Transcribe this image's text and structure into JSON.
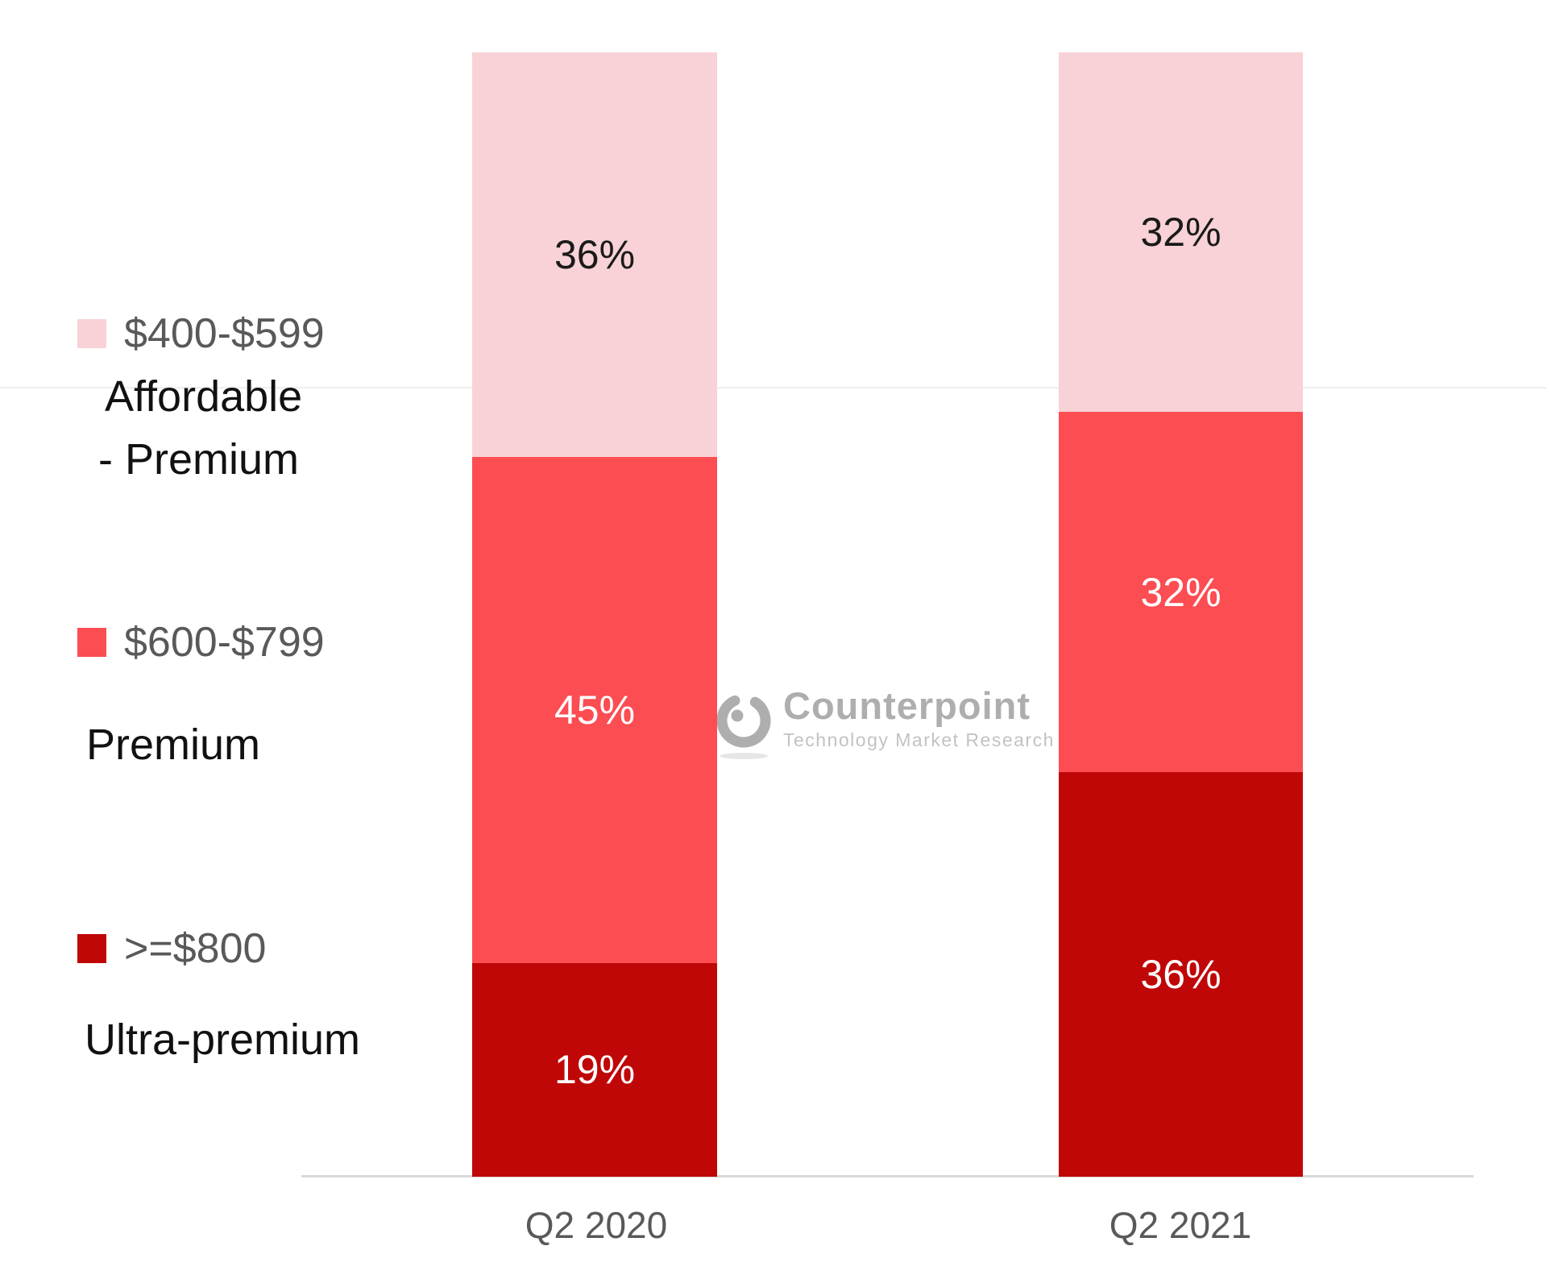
{
  "chart_data": {
    "type": "bar",
    "stacked": true,
    "orientation": "vertical",
    "categories": [
      "Q2 2020",
      "Q2 2021"
    ],
    "series": [
      {
        "name": "$400-$599 Affordable - Premium",
        "values": [
          36,
          32
        ],
        "color": "#f8d2d6",
        "label_color": "#1a1a1a"
      },
      {
        "name": "$600-$799 Premium",
        "values": [
          45,
          32
        ],
        "color": "#fb4d52",
        "label_color": "#ffffff"
      },
      {
        "name": ">=$800 Ultra-premium",
        "values": [
          19,
          36
        ],
        "color": "#c00707",
        "label_color": "#ffffff"
      }
    ],
    "stack_order_top_to_bottom": [
      "$400-$599 Affordable - Premium",
      "$600-$799 Premium",
      ">=$800 Ultra-premium"
    ],
    "value_format": "percent",
    "data_labels": [
      [
        "36%",
        "45%",
        "19%"
      ],
      [
        "32%",
        "32%",
        "36%"
      ]
    ],
    "ylim": [
      0,
      100
    ],
    "grid": "single faint horizontal line",
    "legend_position": "left",
    "title": ""
  },
  "legend": {
    "items": [
      {
        "price": "$400-$599",
        "tier_line1": "Affordable",
        "tier_line2": "- Premium",
        "color": "#f8d2d6"
      },
      {
        "price": "$600-$799",
        "tier_line1": "Premium",
        "tier_line2": "",
        "color": "#fb4d52"
      },
      {
        "price": ">=$800",
        "tier_line1": "Ultra-premium",
        "tier_line2": "",
        "color": "#c00707"
      }
    ]
  },
  "x_axis": {
    "labels": [
      "Q2 2020",
      "Q2 2021"
    ],
    "line_color": "#d9d9d9"
  },
  "watermark": {
    "brand": "Counterpoint",
    "tagline": "Technology Market Research",
    "color": "#a6a6a6"
  },
  "colors": {
    "background": "#ffffff",
    "gridline": "#efefef",
    "axis_text": "#595959",
    "legend_price_text": "#595959",
    "legend_tier_text": "#111111"
  }
}
